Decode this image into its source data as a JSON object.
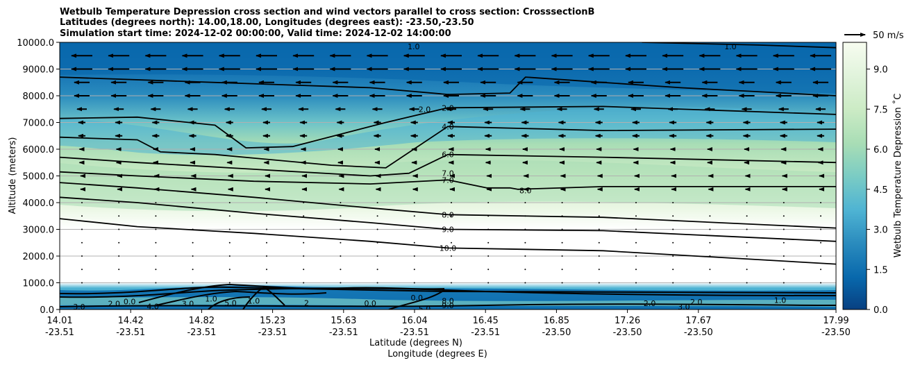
{
  "chart_data": {
    "type": "heatmap",
    "title_lines": [
      "Wetbulb Temperature Depression cross section and wind vectors parallel to cross section: CrosssectionB",
      "Latitudes (degrees north): 14.00,18.00, Longitudes (degrees east): -23.50,-23.50",
      "Simulation start time: 2024-12-02 00:00:00, Valid time: 2024-12-02 14:00:00"
    ],
    "xlabel_lines": [
      "Latitude (degrees N)",
      "Longitude (degrees E)"
    ],
    "ylabel": "Altitude (meters)",
    "ylim": [
      0,
      10000
    ],
    "yticks": [
      "0.0",
      "1000.0",
      "2000.0",
      "3000.0",
      "4000.0",
      "5000.0",
      "6000.0",
      "7000.0",
      "8000.0",
      "9000.0",
      "10000.0"
    ],
    "xticks": [
      {
        "lat": "14.01",
        "lon": "-23.51"
      },
      {
        "lat": "14.42",
        "lon": "-23.51"
      },
      {
        "lat": "14.82",
        "lon": "-23.51"
      },
      {
        "lat": "15.23",
        "lon": "-23.51"
      },
      {
        "lat": "15.63",
        "lon": "-23.51"
      },
      {
        "lat": "16.04",
        "lon": "-23.51"
      },
      {
        "lat": "16.45",
        "lon": "-23.51"
      },
      {
        "lat": "16.85",
        "lon": "-23.50"
      },
      {
        "lat": "17.26",
        "lon": "-23.50"
      },
      {
        "lat": "17.67",
        "lon": "-23.50"
      },
      {
        "lat": "17.99",
        "lon": "-23.50"
      }
    ],
    "colorbar": {
      "label": "Wetbulb Temperature Depression $^\\circ$C",
      "label_display": "Wetbulb Temperature Depression ˚C",
      "range": [
        0,
        10
      ],
      "ticks": [
        "0.0",
        "1.5",
        "3.0",
        "4.5",
        "6.0",
        "7.5",
        "9.0"
      ],
      "colors": [
        "#084081",
        "#0868ac",
        "#2b8cbe",
        "#4eb3d3",
        "#7bccc4",
        "#a8ddb5",
        "#ccebc5",
        "#e0f3db",
        "#f7fcf0"
      ]
    },
    "quiver_key": "50 m/s",
    "grid": true,
    "contour_labels": [
      {
        "text": "1.0",
        "x": 0.456,
        "y": 9850
      },
      {
        "text": "1.0",
        "x": 0.864,
        "y": 9850
      },
      {
        "text": "2.0",
        "x": 0.47,
        "y": 7500
      },
      {
        "text": "2.0",
        "x": 0.5,
        "y": 7550
      },
      {
        "text": "4.0",
        "x": 0.5,
        "y": 6850
      },
      {
        "text": "6.0",
        "x": 0.5,
        "y": 5800
      },
      {
        "text": "7.0",
        "x": 0.5,
        "y": 5100
      },
      {
        "text": "7.0",
        "x": 0.5,
        "y": 4850
      },
      {
        "text": "8.0",
        "x": 0.6,
        "y": 4450
      },
      {
        "text": "8.0",
        "x": 0.5,
        "y": 3550
      },
      {
        "text": "9.0",
        "x": 0.5,
        "y": 3000
      },
      {
        "text": "10.0",
        "x": 0.5,
        "y": 2300
      },
      {
        "text": "3.0",
        "x": 0.025,
        "y": 100
      },
      {
        "text": "2.0",
        "x": 0.07,
        "y": 220
      },
      {
        "text": "0.0",
        "x": 0.09,
        "y": 300
      },
      {
        "text": "4.0",
        "x": 0.12,
        "y": 120
      },
      {
        "text": "3.0",
        "x": 0.165,
        "y": 220
      },
      {
        "text": "1.0",
        "x": 0.195,
        "y": 400
      },
      {
        "text": "5.0",
        "x": 0.22,
        "y": 250
      },
      {
        "text": "1.0",
        "x": 0.25,
        "y": 330
      },
      {
        "text": "2",
        "x": 0.318,
        "y": 250
      },
      {
        "text": "0.0",
        "x": 0.4,
        "y": 230
      },
      {
        "text": "5.0",
        "x": 0.47,
        "y": 30
      },
      {
        "text": "0.0",
        "x": 0.46,
        "y": 440
      },
      {
        "text": "8.0",
        "x": 0.5,
        "y": 320
      },
      {
        "text": "9.0",
        "x": 0.5,
        "y": 150
      },
      {
        "text": "2.0",
        "x": 0.76,
        "y": 230
      },
      {
        "text": "3.0",
        "x": 0.804,
        "y": 100
      },
      {
        "text": "2.0",
        "x": 0.82,
        "y": 280
      },
      {
        "text": "1.0",
        "x": 0.928,
        "y": 350
      }
    ],
    "contours": [
      {
        "level": "10.0",
        "x": [
          0,
          0.1,
          0.25,
          0.4,
          0.5,
          0.7,
          1.0
        ],
        "y": [
          3400,
          3100,
          2850,
          2550,
          2300,
          2200,
          1700
        ]
      },
      {
        "level": "9.0",
        "x": [
          0,
          0.1,
          0.25,
          0.4,
          0.5,
          0.7,
          1.0
        ],
        "y": [
          4200,
          4000,
          3600,
          3250,
          3000,
          2950,
          2550
        ]
      },
      {
        "level": "8.0",
        "x": [
          0,
          0.1,
          0.25,
          0.4,
          0.5,
          0.7,
          1.0
        ],
        "y": [
          4750,
          4550,
          4200,
          3800,
          3550,
          3450,
          3050
        ]
      },
      {
        "level": "7.0",
        "x": [
          0,
          0.1,
          0.25,
          0.4,
          0.5,
          0.55,
          0.58,
          0.59,
          0.7,
          1.0
        ],
        "y": [
          5150,
          5000,
          4800,
          4700,
          4850,
          4550,
          4550,
          4500,
          4600,
          4600
        ]
      },
      {
        "level": "6.0",
        "x": [
          0,
          0.1,
          0.25,
          0.4,
          0.45,
          0.5,
          0.7,
          1.0
        ],
        "y": [
          5700,
          5500,
          5250,
          5000,
          5100,
          5800,
          5700,
          5500
        ]
      },
      {
        "level": "4.0",
        "x": [
          0,
          0.1,
          0.13,
          0.2,
          0.35,
          0.42,
          0.5,
          0.7,
          1.0
        ],
        "y": [
          6450,
          6350,
          5900,
          5800,
          5400,
          5300,
          6850,
          6700,
          6750
        ]
      },
      {
        "level": "2.0",
        "x": [
          0,
          0.1,
          0.2,
          0.24,
          0.3,
          0.42,
          0.5,
          0.7,
          1.0
        ],
        "y": [
          7150,
          7200,
          6900,
          6050,
          6100,
          7000,
          7550,
          7600,
          7300
        ]
      },
      {
        "level": "1.0",
        "x": [
          0,
          0.2,
          0.4,
          0.5,
          0.58,
          0.6,
          0.7,
          0.8,
          1.0
        ],
        "y": [
          8700,
          8500,
          8300,
          8050,
          8100,
          8700,
          8500,
          8300,
          8000
        ]
      },
      {
        "level": "1.0",
        "x": [
          0.75,
          0.9,
          1.0
        ],
        "y": [
          10000,
          9900,
          9800
        ]
      }
    ]
  }
}
